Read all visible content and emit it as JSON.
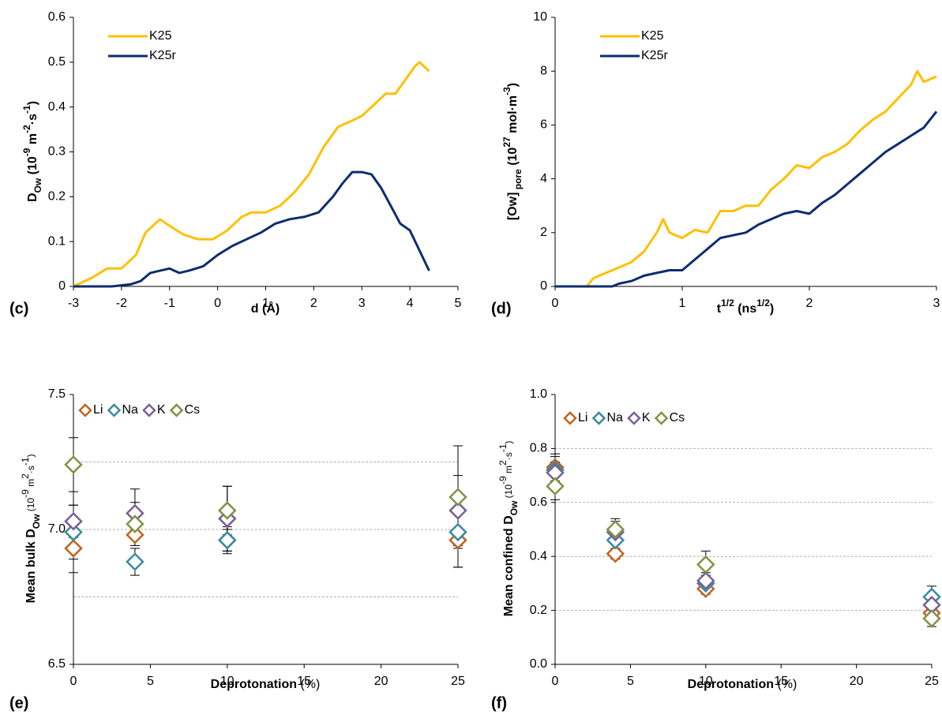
{
  "chart_data": [
    {
      "type": "line",
      "panel_label": "(c)",
      "xlabel": [
        "d (Å)"
      ],
      "ylabel": [
        "D",
        "Ow",
        " (10",
        "-9",
        " m",
        "-2",
        "·s",
        "-1",
        ")"
      ],
      "xlim": [
        -3,
        5
      ],
      "xticks": [
        -3,
        -2,
        -1,
        0,
        1,
        2,
        3,
        4,
        5
      ],
      "ylim": [
        0,
        0.6
      ],
      "yticks": [
        0,
        0.1,
        0.2,
        0.3,
        0.4,
        0.5,
        0.6
      ],
      "series": [
        {
          "name": "K25",
          "color": "#FFC000",
          "x": [
            -3,
            -2.6,
            -2.3,
            -2.0,
            -1.7,
            -1.5,
            -1.2,
            -1.0,
            -0.7,
            -0.4,
            -0.1,
            0.2,
            0.5,
            0.7,
            1.0,
            1.3,
            1.6,
            1.9,
            2.2,
            2.5,
            2.8,
            3.0,
            3.3,
            3.5,
            3.7,
            3.9,
            4.1,
            4.2,
            4.3,
            4.4
          ],
          "values": [
            0,
            0.02,
            0.04,
            0.04,
            0.07,
            0.12,
            0.15,
            0.135,
            0.115,
            0.105,
            0.105,
            0.125,
            0.155,
            0.165,
            0.165,
            0.18,
            0.21,
            0.25,
            0.31,
            0.355,
            0.37,
            0.38,
            0.41,
            0.43,
            0.43,
            0.46,
            0.49,
            0.5,
            0.49,
            0.48
          ]
        },
        {
          "name": "K25r",
          "color": "#0E2D6E",
          "x": [
            -3,
            -2.2,
            -1.8,
            -1.6,
            -1.4,
            -1.2,
            -1.0,
            -0.8,
            -0.6,
            -0.3,
            0,
            0.3,
            0.6,
            0.9,
            1.2,
            1.5,
            1.8,
            2.1,
            2.4,
            2.6,
            2.8,
            3.0,
            3.2,
            3.4,
            3.6,
            3.8,
            4.0,
            4.2,
            4.4
          ],
          "values": [
            0,
            0,
            0.005,
            0.012,
            0.03,
            0.035,
            0.04,
            0.03,
            0.035,
            0.045,
            0.07,
            0.09,
            0.105,
            0.12,
            0.14,
            0.15,
            0.155,
            0.165,
            0.2,
            0.23,
            0.255,
            0.255,
            0.25,
            0.22,
            0.18,
            0.14,
            0.125,
            0.08,
            0.035
          ]
        }
      ]
    },
    {
      "type": "line",
      "panel_label": "(d)",
      "xlabel": [
        "t",
        "1/2",
        " (ns",
        "1/2",
        ")"
      ],
      "ylabel": [
        "[Ow]",
        " pore",
        " (10",
        "27",
        " mol·m",
        "-3",
        ")"
      ],
      "xlim": [
        0,
        3
      ],
      "xticks": [
        0,
        1,
        2,
        3
      ],
      "ylim": [
        0,
        10
      ],
      "yticks": [
        0,
        2,
        4,
        6,
        8,
        10
      ],
      "series": [
        {
          "name": "K25",
          "color": "#FFC000",
          "x": [
            0,
            0.25,
            0.3,
            0.4,
            0.5,
            0.6,
            0.7,
            0.8,
            0.85,
            0.9,
            1.0,
            1.1,
            1.2,
            1.3,
            1.4,
            1.5,
            1.6,
            1.7,
            1.8,
            1.9,
            2.0,
            2.1,
            2.2,
            2.3,
            2.4,
            2.5,
            2.6,
            2.7,
            2.8,
            2.85,
            2.9,
            3.0
          ],
          "values": [
            0,
            0,
            0.3,
            0.5,
            0.7,
            0.9,
            1.3,
            2.0,
            2.5,
            2.0,
            1.8,
            2.1,
            2.0,
            2.8,
            2.8,
            3.0,
            3.0,
            3.6,
            4.0,
            4.5,
            4.4,
            4.8,
            5.0,
            5.3,
            5.8,
            6.2,
            6.5,
            7.0,
            7.5,
            8.0,
            7.6,
            7.8
          ]
        },
        {
          "name": "K25r",
          "color": "#0E2D6E",
          "x": [
            0,
            0.45,
            0.5,
            0.6,
            0.7,
            0.8,
            0.9,
            1.0,
            1.1,
            1.2,
            1.3,
            1.4,
            1.5,
            1.6,
            1.7,
            1.8,
            1.9,
            2.0,
            2.1,
            2.2,
            2.3,
            2.4,
            2.5,
            2.6,
            2.7,
            2.8,
            2.9,
            3.0
          ],
          "values": [
            0,
            0,
            0.1,
            0.2,
            0.4,
            0.5,
            0.6,
            0.6,
            1.0,
            1.4,
            1.8,
            1.9,
            2.0,
            2.3,
            2.5,
            2.7,
            2.8,
            2.7,
            3.1,
            3.4,
            3.8,
            4.2,
            4.6,
            5.0,
            5.3,
            5.6,
            5.9,
            6.5
          ]
        }
      ]
    },
    {
      "type": "scatter",
      "panel_label": "(e)",
      "xlabel": [
        "Deprotonation",
        " (%)"
      ],
      "ylabel": [
        "Mean bulk D",
        "Ow",
        " (10",
        "-9",
        " m",
        "2",
        "·s",
        "-1",
        ")"
      ],
      "xlim": [
        0,
        25
      ],
      "xticks": [
        0,
        5,
        10,
        15,
        20,
        25
      ],
      "ylim": [
        6.5,
        7.5
      ],
      "yticks": [
        6.5,
        {
          "value": 7,
          "label": "7.0"
        },
        7.5
      ],
      "ygrid": [
        6.75,
        7,
        7.25
      ],
      "x": [
        0,
        4,
        10,
        25
      ],
      "series": [
        {
          "name": "Li",
          "color": "#C0641E",
          "values": [
            6.93,
            6.98,
            6.96,
            6.96
          ],
          "errors": [
            0.09,
            0.04,
            0.05,
            0.1
          ]
        },
        {
          "name": "Na",
          "color": "#3A8A9E",
          "values": [
            6.99,
            6.88,
            6.96,
            6.99
          ],
          "errors": [
            0.1,
            0.05,
            0.04,
            0.13
          ]
        },
        {
          "name": "K",
          "color": "#7A5F96",
          "values": [
            7.03,
            7.06,
            7.04,
            7.07
          ],
          "errors": [
            0.06,
            0.09,
            0.12,
            0.13
          ]
        },
        {
          "name": "Cs",
          "color": "#7E9444",
          "values": [
            7.24,
            7.02,
            7.07,
            7.12
          ],
          "errors": [
            0.1,
            0.08,
            0.09,
            0.19
          ]
        }
      ]
    },
    {
      "type": "scatter",
      "panel_label": "(f)",
      "xlabel": [
        "Deprotonation",
        " (%)"
      ],
      "ylabel": [
        "Mean confined D",
        "Ow",
        " (10",
        "-9",
        " m",
        "2",
        "·s",
        "-1",
        ")"
      ],
      "xlim": [
        0,
        25
      ],
      "xticks": [
        0,
        5,
        10,
        15,
        20,
        25
      ],
      "ylim": [
        0,
        1
      ],
      "yticks": [
        {
          "value": 0,
          "label": "0.0"
        },
        0.2,
        0.4,
        0.6,
        0.8,
        {
          "value": 1,
          "label": "1.0"
        }
      ],
      "ygrid": [
        0.2,
        0.4,
        0.6,
        0.8
      ],
      "x": [
        0,
        4,
        10,
        25
      ],
      "series": [
        {
          "name": "Li",
          "color": "#C0641E",
          "values": [
            0.73,
            0.41,
            0.28,
            0.19
          ],
          "errors": [
            0.05,
            0.02,
            0.02,
            0.03
          ]
        },
        {
          "name": "Na",
          "color": "#3A8A9E",
          "values": [
            0.72,
            0.46,
            0.3,
            0.25
          ],
          "errors": [
            0.05,
            0.03,
            0.03,
            0.04
          ]
        },
        {
          "name": "K",
          "color": "#7A5F96",
          "values": [
            0.71,
            0.49,
            0.31,
            0.22
          ],
          "errors": [
            0.04,
            0.04,
            0.03,
            0.03
          ]
        },
        {
          "name": "Cs",
          "color": "#7E9444",
          "values": [
            0.66,
            0.5,
            0.37,
            0.17
          ],
          "errors": [
            0.05,
            0.04,
            0.05,
            0.03
          ]
        }
      ]
    }
  ]
}
